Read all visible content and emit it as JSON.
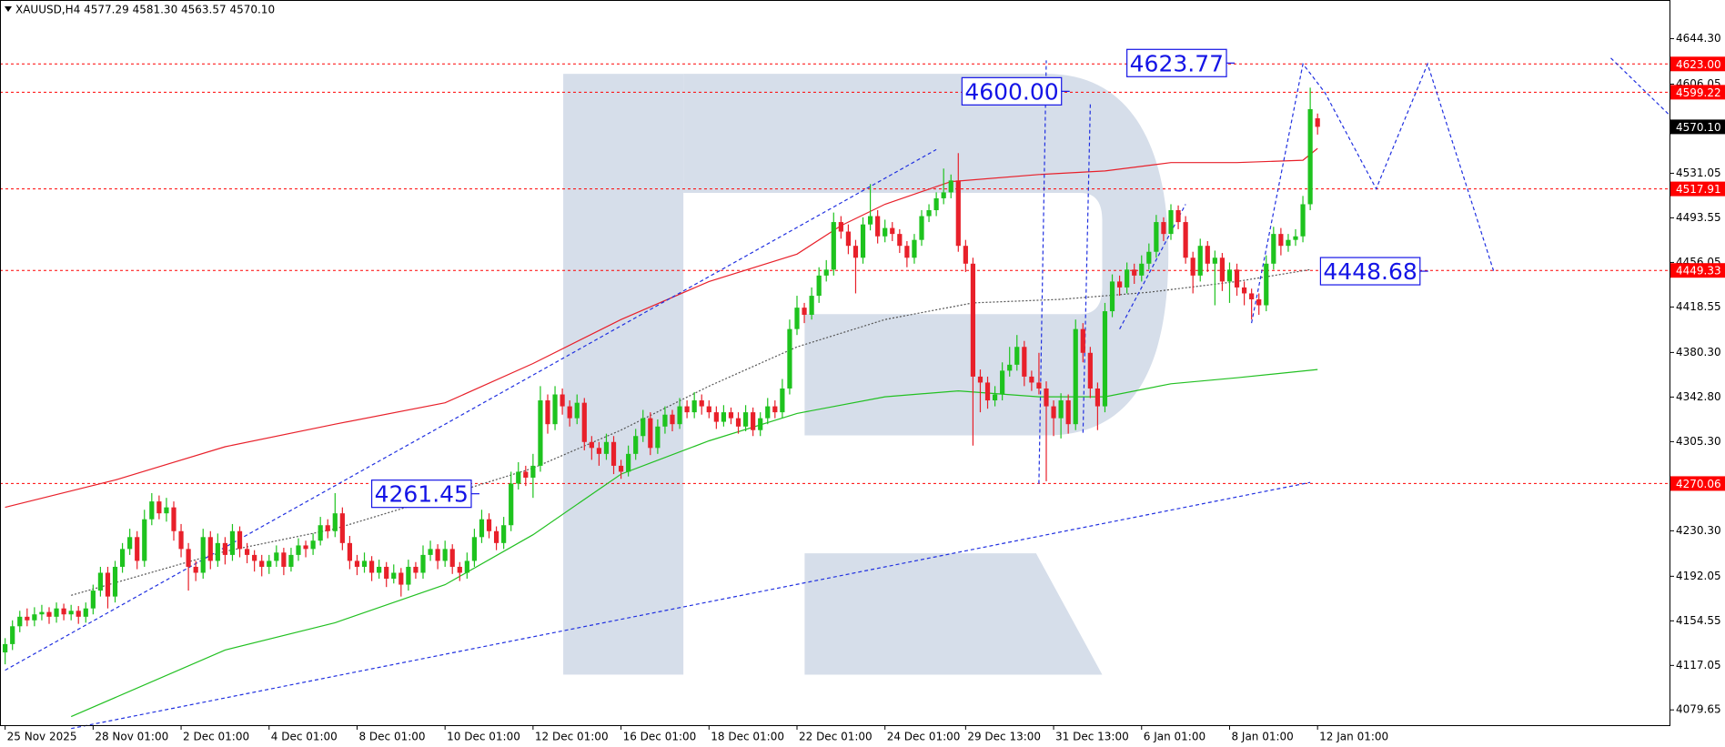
{
  "chart_data": {
    "type": "candlestick",
    "header": "XAUUSD,H4 4577.29 4581.30 4563.57 4570.10",
    "bull_color": "#1ec31e",
    "bear_color": "#e8202a",
    "xlim": [
      -0.7,
      227
    ],
    "ylim": [
      4066.8,
      4676.8
    ],
    "yticks": [
      {
        "value": 4644.3,
        "label": "4644.30"
      },
      4606.05,
      4531.05,
      4493.55,
      4456.05,
      4418.55,
      {
        "value": 4380.3,
        "label": "4380.30"
      },
      {
        "value": 4342.8,
        "label": "4342.80"
      },
      {
        "value": 4305.3,
        "label": "4305.30"
      },
      {
        "value": 4230.3,
        "label": "4230.30"
      },
      4192.05,
      4154.55,
      4117.05,
      4079.65
    ],
    "xticks": [
      {
        "value": 0,
        "label": "25 Nov 2025"
      },
      {
        "value": 12,
        "label": "28 Nov 01:00"
      },
      {
        "value": 24,
        "label": "2 Dec 01:00"
      },
      {
        "value": 36,
        "label": "4 Dec 01:00"
      },
      {
        "value": 48,
        "label": "8 Dec 01:00"
      },
      {
        "value": 60,
        "label": "10 Dec 01:00"
      },
      {
        "value": 72,
        "label": "12 Dec 01:00"
      },
      {
        "value": 84,
        "label": "16 Dec 01:00"
      },
      {
        "value": 96,
        "label": "18 Dec 01:00"
      },
      {
        "value": 108,
        "label": "22 Dec 01:00"
      },
      {
        "value": 120,
        "label": "24 Dec 01:00"
      },
      {
        "value": 131,
        "label": "29 Dec 13:00"
      },
      {
        "value": 143,
        "label": "31 Dec 13:00"
      },
      {
        "value": 155,
        "label": "6 Jan 01:00"
      },
      {
        "value": 167,
        "label": "8 Jan 01:00"
      },
      {
        "value": 179,
        "label": "12 Jan 01:00"
      }
    ],
    "levels": [
      {
        "value": 4623.0,
        "label": "4623.00",
        "color": "#ff0000",
        "line": true
      },
      {
        "value": 4599.22,
        "color": "#ff0000",
        "line": true
      },
      {
        "value": 4570.1,
        "label": "4570.10",
        "color": "#000000",
        "line": false
      },
      {
        "value": 4517.91,
        "color": "#ff0000",
        "line": true
      },
      {
        "value": 4449.33,
        "color": "#ff0000",
        "line": true
      },
      {
        "value": 4270.06,
        "color": "#ff0000",
        "line": true
      }
    ],
    "annotations": [
      {
        "value": 4623.77,
        "x": 153
      },
      {
        "value": 4600.0,
        "label": "4600.00",
        "x": 130.5
      },
      {
        "value": 4261.45,
        "x": 50
      },
      {
        "value": 4448.68,
        "x": 179.4
      }
    ],
    "indicators": [
      {
        "color": "#e8202a",
        "dash": "none",
        "x": [
          0,
          15,
          30,
          45,
          60,
          72,
          84,
          96,
          108,
          114,
          120,
          129,
          141,
          150,
          159,
          168,
          177,
          179
        ],
        "values": [
          4250,
          4273,
          4301,
          4320,
          4338,
          4371,
          4408,
          4440,
          4463,
          4487,
          4505,
          4524,
          4530,
          4533,
          4540,
          4540,
          4542,
          4552
        ]
      },
      {
        "color": "#22c022",
        "dash": "none",
        "x": [
          9,
          30,
          45,
          60,
          72,
          84,
          96,
          108,
          120,
          130,
          141,
          150,
          159,
          168,
          179
        ],
        "values": [
          4074,
          4130,
          4153,
          4185,
          4227,
          4278,
          4306,
          4329,
          4343,
          4348,
          4343,
          4343,
          4354,
          4359,
          4366
        ]
      },
      {
        "color": "#555555",
        "dash": "2 2",
        "x": [
          9,
          30,
          45,
          60,
          72,
          84,
          96,
          108,
          120,
          132,
          144,
          156,
          168,
          178
        ],
        "values": [
          4176,
          4213,
          4232,
          4260,
          4283,
          4315,
          4352,
          4385,
          4408,
          4422,
          4425,
          4431,
          4440,
          4450
        ]
      },
      {
        "color": "#2030e0",
        "dash": "4 3",
        "x": [
          0,
          127
        ],
        "values": [
          4113,
          4551
        ]
      },
      {
        "color": "#2030e0",
        "dash": "4 3",
        "x": [
          9,
          178
        ],
        "values": [
          4064,
          4271
        ]
      },
      {
        "color": "#2030e0",
        "dash": "4 3",
        "x": [
          141,
          142
        ],
        "values": [
          4270,
          4626
        ]
      },
      {
        "color": "#2030e0",
        "dash": "4 3",
        "x": [
          148,
          147
        ],
        "values": [
          4589,
          4311
        ]
      },
      {
        "color": "#2030e0",
        "dash": "4 3",
        "x": [
          152,
          161
        ],
        "values": [
          4400,
          4505
        ]
      },
      {
        "color": "#2030e0",
        "dash": "4 3",
        "x": [
          170,
          177,
          180,
          187,
          194,
          203
        ],
        "values": [
          4405,
          4623,
          4599,
          4518,
          4623,
          4449
        ]
      },
      {
        "color": "#2030e0",
        "dash": "4 3",
        "x": [
          219,
          227
        ],
        "values": [
          4628,
          4580
        ]
      }
    ],
    "candles": [
      [
        4128,
        4140,
        4118,
        4135
      ],
      [
        4135,
        4155,
        4130,
        4150
      ],
      [
        4150,
        4163,
        4145,
        4158
      ],
      [
        4158,
        4165,
        4150,
        4155
      ],
      [
        4155,
        4166,
        4150,
        4160
      ],
      [
        4160,
        4168,
        4155,
        4162
      ],
      [
        4162,
        4166,
        4152,
        4158
      ],
      [
        4158,
        4170,
        4153,
        4165
      ],
      [
        4165,
        4169,
        4155,
        4160
      ],
      [
        4160,
        4168,
        4155,
        4163
      ],
      [
        4163,
        4167,
        4152,
        4158
      ],
      [
        4158,
        4170,
        4153,
        4165
      ],
      [
        4165,
        4185,
        4160,
        4180
      ],
      [
        4180,
        4200,
        4175,
        4195
      ],
      [
        4195,
        4200,
        4165,
        4175
      ],
      [
        4175,
        4205,
        4170,
        4200
      ],
      [
        4200,
        4220,
        4195,
        4215
      ],
      [
        4215,
        4232,
        4210,
        4225
      ],
      [
        4225,
        4230,
        4198,
        4205
      ],
      [
        4205,
        4248,
        4200,
        4240
      ],
      [
        4240,
        4262,
        4235,
        4255
      ],
      [
        4255,
        4260,
        4240,
        4245
      ],
      [
        4245,
        4258,
        4238,
        4250
      ],
      [
        4250,
        4255,
        4222,
        4230
      ],
      [
        4230,
        4236,
        4208,
        4215
      ],
      [
        4215,
        4220,
        4180,
        4200
      ],
      [
        4200,
        4205,
        4188,
        4195
      ],
      [
        4195,
        4232,
        4190,
        4225
      ],
      [
        4225,
        4230,
        4198,
        4205
      ],
      [
        4205,
        4228,
        4200,
        4220
      ],
      [
        4220,
        4225,
        4202,
        4210
      ],
      [
        4210,
        4236,
        4205,
        4230
      ],
      [
        4230,
        4234,
        4208,
        4215
      ],
      [
        4215,
        4220,
        4203,
        4210
      ],
      [
        4210,
        4214,
        4196,
        4205
      ],
      [
        4205,
        4210,
        4192,
        4200
      ],
      [
        4200,
        4210,
        4194,
        4205
      ],
      [
        4205,
        4218,
        4200,
        4212
      ],
      [
        4212,
        4216,
        4193,
        4200
      ],
      [
        4200,
        4216,
        4196,
        4210
      ],
      [
        4210,
        4224,
        4205,
        4218
      ],
      [
        4218,
        4222,
        4208,
        4215
      ],
      [
        4215,
        4228,
        4210,
        4222
      ],
      [
        4222,
        4242,
        4218,
        4235
      ],
      [
        4235,
        4240,
        4224,
        4230
      ],
      [
        4230,
        4262,
        4225,
        4245
      ],
      [
        4245,
        4250,
        4214,
        4220
      ],
      [
        4220,
        4226,
        4198,
        4205
      ],
      [
        4205,
        4210,
        4193,
        4200
      ],
      [
        4200,
        4212,
        4195,
        4205
      ],
      [
        4205,
        4209,
        4188,
        4195
      ],
      [
        4195,
        4206,
        4190,
        4200
      ],
      [
        4200,
        4204,
        4183,
        4190
      ],
      [
        4190,
        4202,
        4186,
        4195
      ],
      [
        4195,
        4199,
        4175,
        4185
      ],
      [
        4185,
        4206,
        4180,
        4200
      ],
      [
        4200,
        4204,
        4190,
        4195
      ],
      [
        4195,
        4218,
        4190,
        4210
      ],
      [
        4210,
        4222,
        4205,
        4215
      ],
      [
        4215,
        4219,
        4198,
        4205
      ],
      [
        4205,
        4222,
        4200,
        4215
      ],
      [
        4215,
        4219,
        4194,
        4200
      ],
      [
        4200,
        4204,
        4188,
        4195
      ],
      [
        4195,
        4212,
        4190,
        4205
      ],
      [
        4205,
        4232,
        4200,
        4225
      ],
      [
        4225,
        4248,
        4220,
        4240
      ],
      [
        4240,
        4245,
        4224,
        4230
      ],
      [
        4230,
        4234,
        4214,
        4220
      ],
      [
        4220,
        4242,
        4215,
        4235
      ],
      [
        4235,
        4280,
        4230,
        4270
      ],
      [
        4270,
        4288,
        4265,
        4280
      ],
      [
        4280,
        4285,
        4268,
        4275
      ],
      [
        4275,
        4295,
        4258,
        4285
      ],
      [
        4285,
        4352,
        4280,
        4340
      ],
      [
        4340,
        4345,
        4312,
        4320
      ],
      [
        4320,
        4352,
        4315,
        4345
      ],
      [
        4345,
        4350,
        4328,
        4335
      ],
      [
        4335,
        4340,
        4318,
        4325
      ],
      [
        4325,
        4345,
        4320,
        4338
      ],
      [
        4338,
        4342,
        4298,
        4305
      ],
      [
        4305,
        4310,
        4290,
        4300
      ],
      [
        4300,
        4305,
        4285,
        4295
      ],
      [
        4295,
        4312,
        4290,
        4305
      ],
      [
        4305,
        4310,
        4278,
        4285
      ],
      [
        4285,
        4290,
        4274,
        4280
      ],
      [
        4280,
        4302,
        4276,
        4295
      ],
      [
        4295,
        4316,
        4290,
        4310
      ],
      [
        4310,
        4332,
        4305,
        4325
      ],
      [
        4325,
        4330,
        4294,
        4300
      ],
      [
        4300,
        4324,
        4295,
        4318
      ],
      [
        4318,
        4335,
        4312,
        4328
      ],
      [
        4328,
        4332,
        4314,
        4320
      ],
      [
        4320,
        4342,
        4316,
        4335
      ],
      [
        4335,
        4340,
        4325,
        4330
      ],
      [
        4330,
        4347,
        4325,
        4340
      ],
      [
        4340,
        4345,
        4328,
        4335
      ],
      [
        4335,
        4340,
        4325,
        4330
      ],
      [
        4330,
        4335,
        4316,
        4322
      ],
      [
        4322,
        4336,
        4318,
        4330
      ],
      [
        4330,
        4334,
        4320,
        4325
      ],
      [
        4325,
        4330,
        4312,
        4318
      ],
      [
        4318,
        4336,
        4314,
        4330
      ],
      [
        4330,
        4334,
        4310,
        4315
      ],
      [
        4315,
        4330,
        4310,
        4325
      ],
      [
        4325,
        4342,
        4320,
        4335
      ],
      [
        4335,
        4340,
        4325,
        4330
      ],
      [
        4330,
        4358,
        4325,
        4350
      ],
      [
        4350,
        4408,
        4345,
        4400
      ],
      [
        4400,
        4428,
        4395,
        4418
      ],
      [
        4418,
        4422,
        4405,
        4412
      ],
      [
        4412,
        4435,
        4408,
        4428
      ],
      [
        4428,
        4452,
        4422,
        4445
      ],
      [
        4445,
        4458,
        4440,
        4450
      ],
      [
        4450,
        4498,
        4445,
        4490
      ],
      [
        4490,
        4495,
        4476,
        4482
      ],
      [
        4482,
        4488,
        4463,
        4470
      ],
      [
        4470,
        4475,
        4430,
        4460
      ],
      [
        4460,
        4494,
        4455,
        4488
      ],
      [
        4488,
        4522,
        4483,
        4495
      ],
      [
        4495,
        4500,
        4472,
        4478
      ],
      [
        4478,
        4492,
        4473,
        4485
      ],
      [
        4485,
        4490,
        4474,
        4480
      ],
      [
        4480,
        4484,
        4464,
        4470
      ],
      [
        4470,
        4474,
        4452,
        4460
      ],
      [
        4460,
        4480,
        4455,
        4475
      ],
      [
        4475,
        4500,
        4470,
        4495
      ],
      [
        4495,
        4505,
        4490,
        4500
      ],
      [
        4500,
        4515,
        4495,
        4510
      ],
      [
        4510,
        4535,
        4505,
        4515
      ],
      [
        4515,
        4530,
        4510,
        4525
      ],
      [
        4525,
        4548,
        4465,
        4470
      ],
      [
        4470,
        4475,
        4448,
        4455
      ],
      [
        4455,
        4460,
        4302,
        4360
      ],
      [
        4360,
        4366,
        4330,
        4355
      ],
      [
        4355,
        4360,
        4333,
        4340
      ],
      [
        4340,
        4352,
        4335,
        4345
      ],
      [
        4345,
        4372,
        4340,
        4365
      ],
      [
        4365,
        4385,
        4360,
        4370
      ],
      [
        4370,
        4395,
        4365,
        4385
      ],
      [
        4385,
        4390,
        4352,
        4360
      ],
      [
        4360,
        4365,
        4348,
        4355
      ],
      [
        4355,
        4380,
        4345,
        4350
      ],
      [
        4350,
        4356,
        4272,
        4335
      ],
      [
        4335,
        4340,
        4310,
        4325
      ],
      [
        4325,
        4346,
        4308,
        4340
      ],
      [
        4340,
        4345,
        4312,
        4320
      ],
      [
        4320,
        4408,
        4315,
        4400
      ],
      [
        4400,
        4405,
        4372,
        4380
      ],
      [
        4380,
        4385,
        4342,
        4350
      ],
      [
        4350,
        4355,
        4315,
        4335
      ],
      [
        4335,
        4422,
        4330,
        4415
      ],
      [
        4415,
        4446,
        4410,
        4440
      ],
      [
        4440,
        4445,
        4428,
        4435
      ],
      [
        4435,
        4456,
        4430,
        4450
      ],
      [
        4450,
        4455,
        4438,
        4445
      ],
      [
        4445,
        4462,
        4440,
        4455
      ],
      [
        4455,
        4472,
        4450,
        4465
      ],
      [
        4465,
        4496,
        4460,
        4490
      ],
      [
        4490,
        4494,
        4474,
        4480
      ],
      [
        4480,
        4505,
        4475,
        4500
      ],
      [
        4500,
        4504,
        4484,
        4490
      ],
      [
        4490,
        4495,
        4455,
        4460
      ],
      [
        4460,
        4465,
        4430,
        4445
      ],
      [
        4445,
        4476,
        4440,
        4470
      ],
      [
        4470,
        4474,
        4448,
        4455
      ],
      [
        4455,
        4466,
        4420,
        4460
      ],
      [
        4460,
        4464,
        4432,
        4440
      ],
      [
        4440,
        4456,
        4422,
        4450
      ],
      [
        4450,
        4455,
        4428,
        4435
      ],
      [
        4435,
        4440,
        4420,
        4430
      ],
      [
        4430,
        4434,
        4408,
        4425
      ],
      [
        4425,
        4430,
        4412,
        4420
      ],
      [
        4420,
        4462,
        4415,
        4455
      ],
      [
        4455,
        4486,
        4450,
        4480
      ],
      [
        4480,
        4485,
        4462,
        4470
      ],
      [
        4470,
        4480,
        4465,
        4475
      ],
      [
        4475,
        4484,
        4470,
        4478
      ],
      [
        4478,
        4512,
        4473,
        4505
      ],
      [
        4505,
        4603,
        4500,
        4585
      ],
      [
        4577.29,
        4581.3,
        4563.57,
        4570.1
      ]
    ]
  }
}
